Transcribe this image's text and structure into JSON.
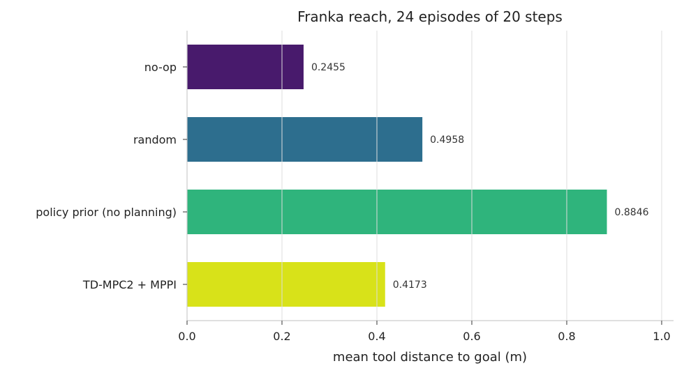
{
  "chart_data": {
    "type": "bar",
    "orientation": "horizontal",
    "title": "Franka reach, 24 episodes of 20 steps",
    "xlabel": "mean tool distance to goal (m)",
    "ylabel": "",
    "categories": [
      "no-op",
      "random",
      "policy prior (no planning)",
      "TD-MPC2 + MPPI"
    ],
    "values": [
      0.2455,
      0.4958,
      0.8846,
      0.4173
    ],
    "data_labels": [
      "0.2455",
      "0.4958",
      "0.8846",
      "0.4173"
    ],
    "colors": [
      "#481a6c",
      "#2d6e8e",
      "#2fb47c",
      "#d8e219"
    ],
    "xlim": [
      0,
      1.025
    ],
    "xticks": [
      0.0,
      0.2,
      0.4,
      0.6,
      0.8,
      1.0
    ],
    "xtick_labels": [
      "0.0",
      "0.2",
      "0.4",
      "0.6",
      "0.8",
      "1.0"
    ],
    "grid": "vertical"
  }
}
